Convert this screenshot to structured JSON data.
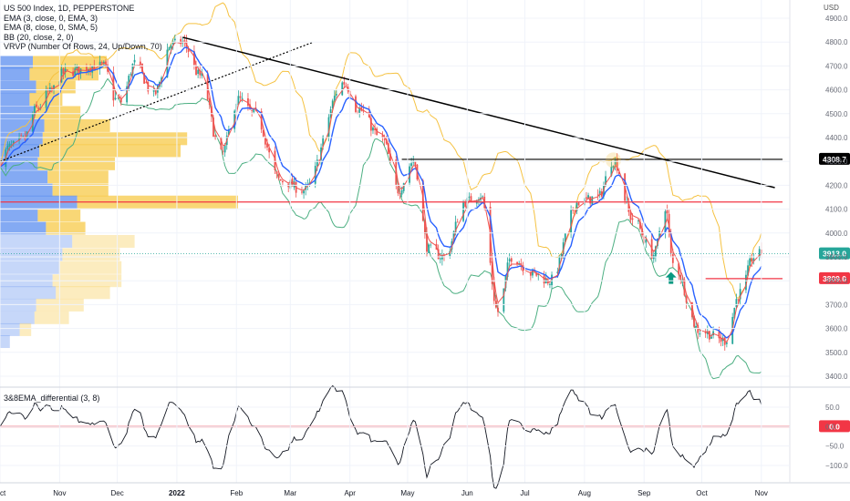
{
  "legend": {
    "symbol": "US 500 Index, 1D, PEPPERSTONE",
    "ema_fast": "EMA (3, close, 0, EMA, 3)",
    "ema_slow": "EMA (8, close, 0, SMA, 5)",
    "bb": "BB (20, close, 2, 0)",
    "vrvp": "VRVP (Number Of Rows, 24, Up/Down, 70)"
  },
  "currency": "USD",
  "indicator_title": "3&8EMA_differential (3, 8)",
  "colors": {
    "up": "#26a69a",
    "down": "#ef5350",
    "ema_fast": "#ef5350",
    "ema_slow": "#2962ff",
    "bb_upper": "#f5c242",
    "bb_lower": "#4caf82",
    "resistance": "#f23645",
    "level_line": "#000000",
    "vp_up": "#5b8def",
    "vp_down": "#f7c948",
    "arrow": "#089981"
  },
  "chart_data": [
    {
      "type": "candlestick",
      "title": "US 500 Index, 1D, PEPPERSTONE",
      "y_axis_label": "USD",
      "ylim": [
        3380,
        4950
      ],
      "y_ticks": [
        "4900.0",
        "4800.0",
        "4700.0",
        "4600.0",
        "4500.0",
        "4400.0",
        "4300.0",
        "4200.0",
        "4100.0",
        "4000.0",
        "3900.0",
        "3800.0",
        "3700.0",
        "3600.0",
        "3500.0",
        "3400.0"
      ],
      "x_ticks": [
        "Oct",
        "Nov",
        "Dec",
        "2022",
        "Feb",
        "Mar",
        "Apr",
        "May",
        "Jun",
        "Jul",
        "Aug",
        "Sep",
        "Oct",
        "Nov"
      ],
      "x_tick_dates": [
        "2021-10-01",
        "2021-11-01",
        "2021-12-01",
        "2022-01-01",
        "2022-02-01",
        "2022-03-01",
        "2022-04-01",
        "2022-05-01",
        "2022-06-01",
        "2022-07-01",
        "2022-08-01",
        "2022-09-01",
        "2022-10-01",
        "2022-11-01"
      ],
      "x_range": [
        "2021-10-01",
        "2022-11-12"
      ],
      "price_path": [
        [
          "2021-10-01",
          4300
        ],
        [
          "2021-10-06",
          4360
        ],
        [
          "2021-10-13",
          4390
        ],
        [
          "2021-10-20",
          4520
        ],
        [
          "2021-10-27",
          4590
        ],
        [
          "2021-11-03",
          4670
        ],
        [
          "2021-11-10",
          4680
        ],
        [
          "2021-11-18",
          4700
        ],
        [
          "2021-11-24",
          4700
        ],
        [
          "2021-11-30",
          4560
        ],
        [
          "2021-12-03",
          4550
        ],
        [
          "2021-12-10",
          4710
        ],
        [
          "2021-12-20",
          4580
        ],
        [
          "2021-12-29",
          4790
        ],
        [
          "2022-01-04",
          4800
        ],
        [
          "2022-01-13",
          4660
        ],
        [
          "2022-01-24",
          4330
        ],
        [
          "2022-02-02",
          4560
        ],
        [
          "2022-02-10",
          4500
        ],
        [
          "2022-02-24",
          4220
        ],
        [
          "2022-03-08",
          4180
        ],
        [
          "2022-03-29",
          4630
        ],
        [
          "2022-04-05",
          4520
        ],
        [
          "2022-04-18",
          4390
        ],
        [
          "2022-04-26",
          4180
        ],
        [
          "2022-05-04",
          4300
        ],
        [
          "2022-05-12",
          3930
        ],
        [
          "2022-05-20",
          3900
        ],
        [
          "2022-05-31",
          4130
        ],
        [
          "2022-06-08",
          4160
        ],
        [
          "2022-06-17",
          3670
        ],
        [
          "2022-06-24",
          3900
        ],
        [
          "2022-07-05",
          3830
        ],
        [
          "2022-07-14",
          3800
        ],
        [
          "2022-07-29",
          4130
        ],
        [
          "2022-08-08",
          4150
        ],
        [
          "2022-08-16",
          4305
        ],
        [
          "2022-08-26",
          4060
        ],
        [
          "2022-09-06",
          3910
        ],
        [
          "2022-09-12",
          4110
        ],
        [
          "2022-09-16",
          3870
        ],
        [
          "2022-09-30",
          3590
        ],
        [
          "2022-10-13",
          3550
        ],
        [
          "2022-10-21",
          3750
        ],
        [
          "2022-10-28",
          3900
        ],
        [
          "2022-11-01",
          3913
        ]
      ],
      "price_label": "3913.0",
      "levels": [
        {
          "name": "horizontal-resistance",
          "price": 4308.7,
          "label": "4308.7",
          "from": "2022-04-28",
          "to": "2022-11-12"
        },
        {
          "name": "red-level-1",
          "price": 4130,
          "from": "2021-10-01",
          "to": "2022-11-12"
        },
        {
          "name": "red-level-2",
          "price": 3809,
          "label": "3809.0",
          "from": "2022-10-03",
          "to": "2022-11-12"
        }
      ],
      "trendlines": [
        {
          "name": "descending-trendline",
          "style": "solid",
          "from": [
            "2022-01-04",
            4820
          ],
          "to": [
            "2022-11-08",
            4190
          ]
        },
        {
          "name": "ascending-trendline",
          "style": "dotted",
          "from": [
            "2021-10-01",
            4300
          ],
          "to": [
            "2022-03-13",
            4800
          ]
        }
      ],
      "markers": [
        {
          "name": "buy-arrow",
          "date": "2022-09-15",
          "price": 3810
        }
      ],
      "volume_profile": {
        "rows": [
          {
            "price": 4715,
            "up": 0.2,
            "down": 0.45
          },
          {
            "price": 4666,
            "up": 0.18,
            "down": 0.42
          },
          {
            "price": 4612,
            "up": 0.22,
            "down": 0.24
          },
          {
            "price": 4560,
            "up": 0.18,
            "down": 0.2
          },
          {
            "price": 4505,
            "up": 0.21,
            "down": 0.28
          },
          {
            "price": 4450,
            "up": 0.27,
            "down": 0.4
          },
          {
            "price": 4395,
            "up": 0.26,
            "down": 0.88
          },
          {
            "price": 4345,
            "up": 0.24,
            "down": 0.86
          },
          {
            "price": 4290,
            "up": 0.23,
            "down": 0.47
          },
          {
            "price": 4235,
            "up": 0.29,
            "down": 0.37
          },
          {
            "price": 4180,
            "up": 0.32,
            "down": 0.34
          },
          {
            "price": 4130,
            "up": 0.47,
            "down": 0.98
          },
          {
            "price": 4075,
            "up": 0.23,
            "down": 0.26
          },
          {
            "price": 4020,
            "up": 0.28,
            "down": 0.24
          },
          {
            "price": 3965,
            "up": 0.44,
            "down": 0.38
          },
          {
            "price": 3910,
            "up": 0.38,
            "down": 0.35
          },
          {
            "price": 3855,
            "up": 0.36,
            "down": 0.38
          },
          {
            "price": 3800,
            "up": 0.32,
            "down": 0.42
          },
          {
            "price": 3750,
            "up": 0.34,
            "down": 0.33
          },
          {
            "price": 3698,
            "up": 0.22,
            "down": 0.29
          },
          {
            "price": 3645,
            "up": 0.21,
            "down": 0.21
          },
          {
            "price": 3595,
            "up": 0.12,
            "down": 0.07
          },
          {
            "price": 3545,
            "up": 0.06,
            "down": 0.0
          }
        ]
      }
    },
    {
      "type": "line",
      "title": "3&8EMA_differential (3, 8)",
      "ylim": [
        -130,
        80
      ],
      "y_ticks": [
        "50.0",
        "0.0",
        "−50.0",
        "−100.0"
      ],
      "zero_label": "0.0",
      "zero_line": 0
    }
  ]
}
